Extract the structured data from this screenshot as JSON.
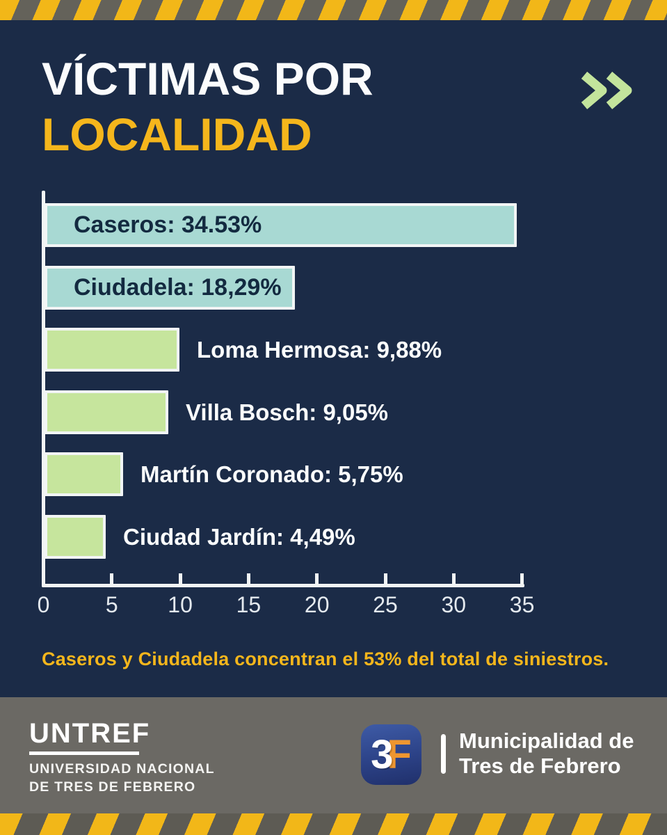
{
  "header": {
    "title_line1": "VÍCTIMAS POR",
    "title_line2": "LOCALIDAD",
    "chevrons_icon": "double-chevron-right"
  },
  "chart_data": {
    "type": "bar",
    "orientation": "horizontal",
    "title": "Víctimas por localidad (%)",
    "categories": [
      "Caseros",
      "Ciudadela",
      "Loma Hermosa",
      "Villa Bosch",
      "Martín Coronado",
      "Ciudad Jardín"
    ],
    "values": [
      34.53,
      18.29,
      9.88,
      9.05,
      5.75,
      4.49
    ],
    "bar_labels": [
      "Caseros: 34.53%",
      "Ciudadela: 18,29%",
      "Loma Hermosa: 9,88%",
      "Villa Bosch: 9,05%",
      "Martín Coronado: 5,75%",
      "Ciudad Jardín: 4,49%"
    ],
    "label_inside": [
      true,
      true,
      false,
      false,
      false,
      false
    ],
    "bar_colors": [
      "#a8d9d3",
      "#a8d9d3",
      "#c6e59d",
      "#c6e59d",
      "#c6e59d",
      "#c6e59d"
    ],
    "x_ticks": [
      0,
      5,
      10,
      15,
      20,
      25,
      30,
      35
    ],
    "xlim": [
      0,
      35
    ],
    "xlabel": "",
    "ylabel": "",
    "grid": false,
    "legend": false
  },
  "note": {
    "text": "Caseros y Ciudadela concentran el 53% del total de siniestros."
  },
  "footer": {
    "untref": {
      "wordmark": "UNTREF",
      "line1": "UNIVERSIDAD NACIONAL",
      "line2": "DE TRES DE FEBRERO"
    },
    "muni": {
      "logo_3": "3",
      "logo_f": "F",
      "name_line1": "Municipalidad de",
      "name_line2": "Tres de Febrero"
    }
  },
  "colors": {
    "background_navy": "#1b2b47",
    "accent_yellow": "#f5b61c",
    "bar_teal": "#a8d9d3",
    "bar_green": "#c6e59d",
    "chevron_green": "#c3e49c",
    "footer_gray": "#6b6964",
    "stripe_yellow": "#f2b718",
    "stripe_gray": "#64625a",
    "logo_blue": "#2c4287",
    "logo_orange": "#ee9630",
    "axis_white": "#f2f5f5"
  }
}
